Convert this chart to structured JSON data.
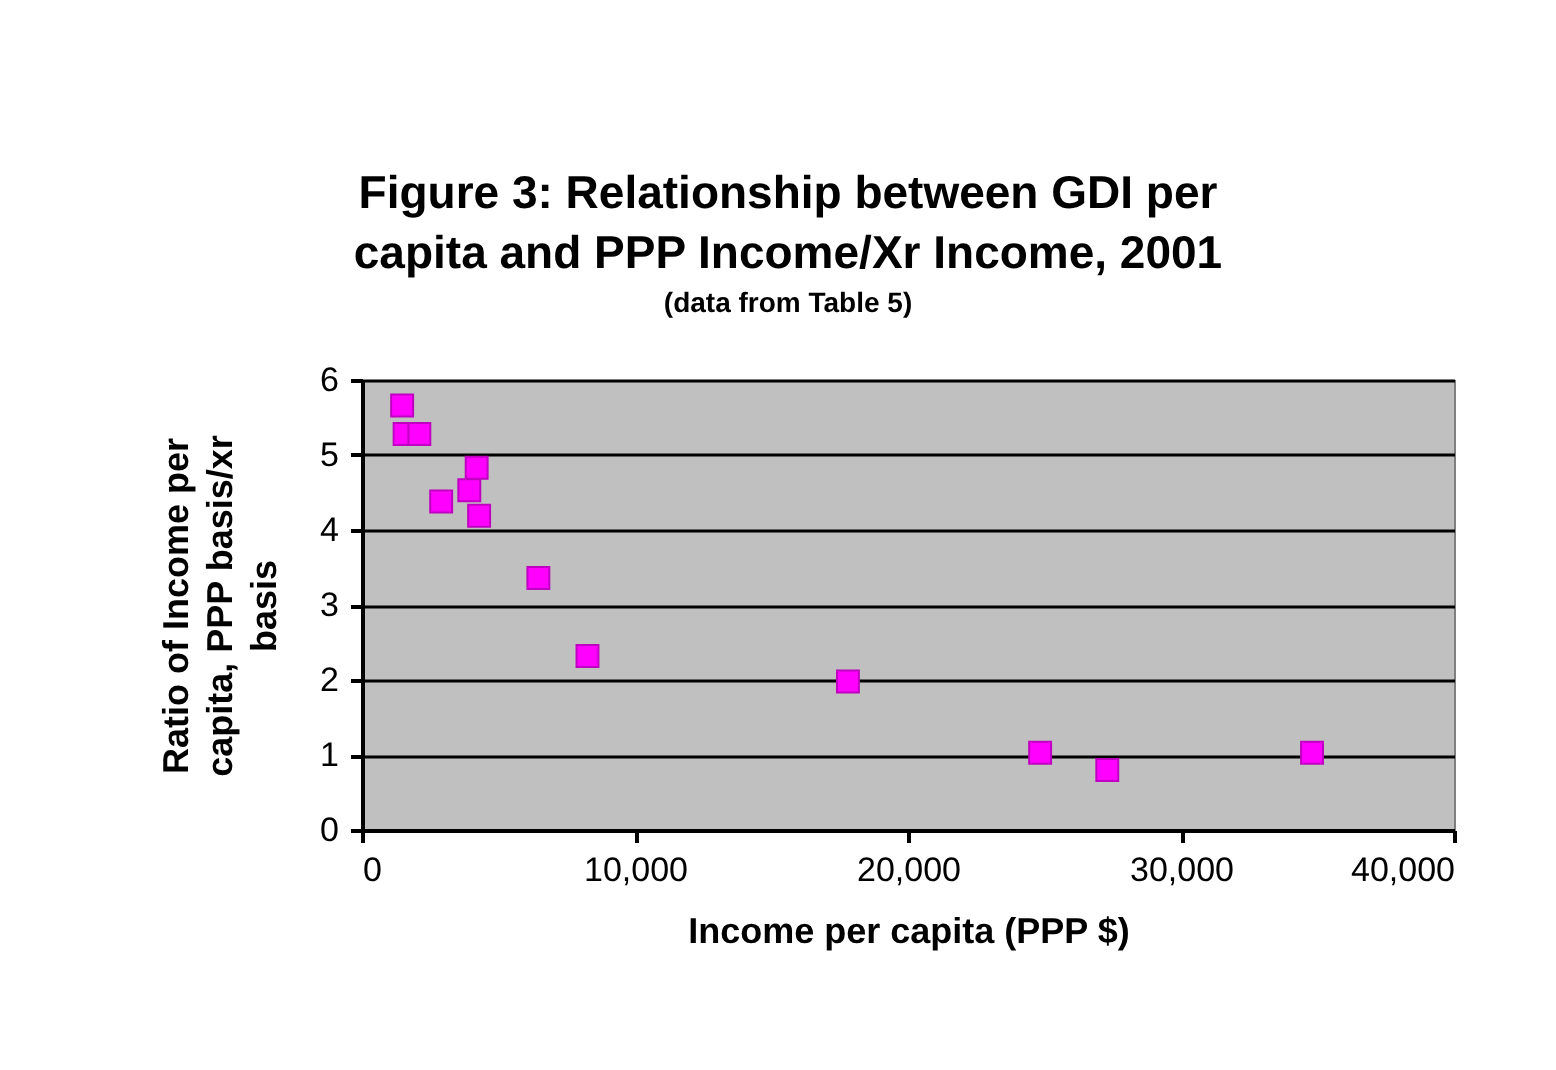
{
  "chart_data": {
    "type": "scatter",
    "title": "Figure 3: Relationship between GDI per capita and PPP Income/Xr Income, 2001",
    "subtitle": "(data from Table 5)",
    "xlabel": "Income per capita (PPP $)",
    "ylabel": "Ratio of Income per capita, PPP basis/xr basis",
    "x": [
      1470,
      1560,
      2100,
      4200,
      3930,
      2900,
      4290,
      6460,
      8260,
      17800,
      24840,
      27300,
      34800
    ],
    "series": [
      {
        "color": "#ff00ff",
        "values": [
          5.66,
          5.28,
          5.28,
          4.83,
          4.53,
          4.38,
          4.19,
          3.36,
          2.32,
          1.98,
          1.03,
          0.8,
          1.03
        ]
      }
    ],
    "xlim": [
      0,
      40000
    ],
    "xticks": [
      {
        "value": 0,
        "label": "0"
      },
      {
        "value": 10000,
        "label": "10,000"
      },
      {
        "value": 20000,
        "label": "20,000"
      },
      {
        "value": 30000,
        "label": "30,000"
      },
      {
        "value": 40000,
        "label": "40,000"
      }
    ],
    "ylim": [
      0,
      6
    ],
    "yticks": [
      0,
      1,
      2,
      3,
      4,
      5,
      6
    ],
    "grid": "y",
    "marker": "square"
  }
}
